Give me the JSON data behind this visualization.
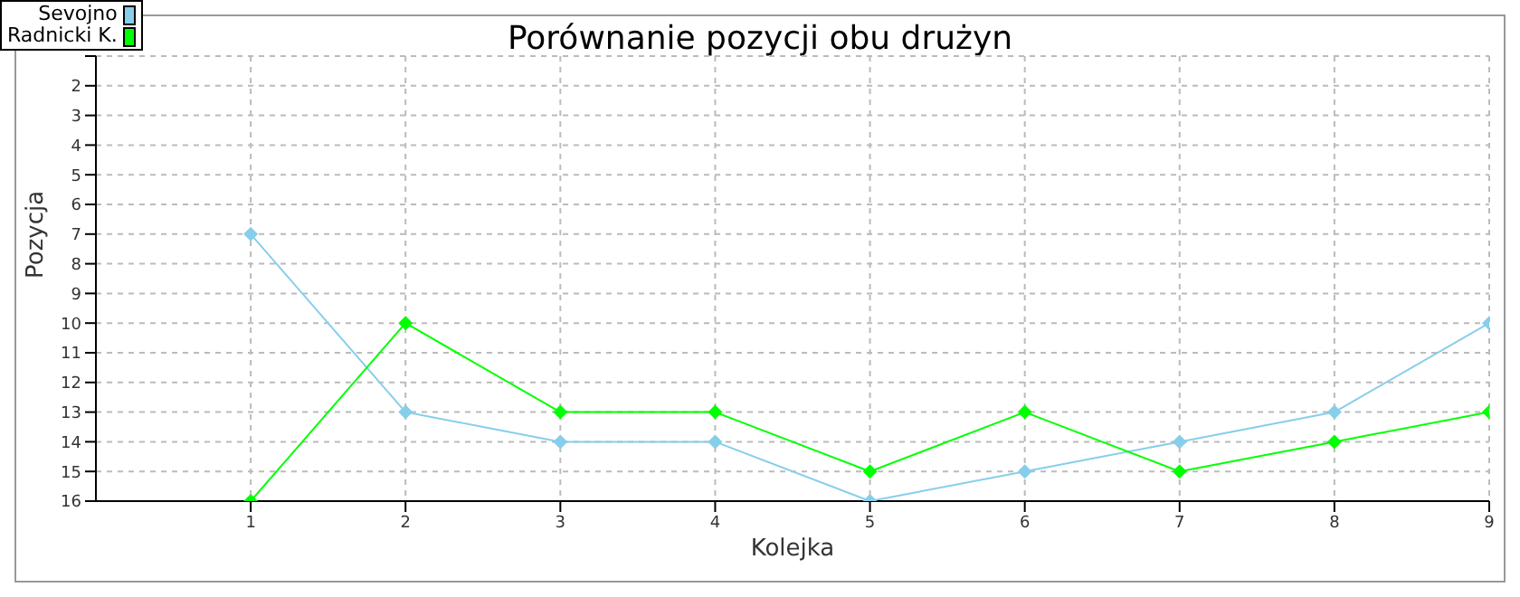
{
  "chart_data": {
    "type": "line",
    "title": "Porównanie pozycji obu drużyn",
    "xlabel": "Kolejka",
    "ylabel": "Pozycja",
    "x": [
      1,
      2,
      3,
      4,
      5,
      6,
      7,
      8,
      9
    ],
    "series": [
      {
        "name": "Sevojno",
        "color": "#87ceeb",
        "values": [
          7,
          13,
          14,
          14,
          16,
          15,
          14,
          13,
          10
        ]
      },
      {
        "name": "Radnicki K.",
        "color": "#00ff00",
        "values": [
          16,
          10,
          13,
          13,
          15,
          13,
          15,
          14,
          13
        ]
      }
    ],
    "xlim": [
      0,
      9
    ],
    "xticks": [
      1,
      2,
      3,
      4,
      5,
      6,
      7,
      8,
      9
    ],
    "ylim": [
      16,
      1
    ],
    "yticks": [
      {
        "value": 1,
        "label": null
      },
      2,
      3,
      4,
      5,
      6,
      7,
      8,
      9,
      10,
      11,
      12,
      13,
      14,
      15,
      16
    ],
    "grid": true,
    "legend": "top left",
    "marker": "diamond",
    "line_style": "solid"
  }
}
